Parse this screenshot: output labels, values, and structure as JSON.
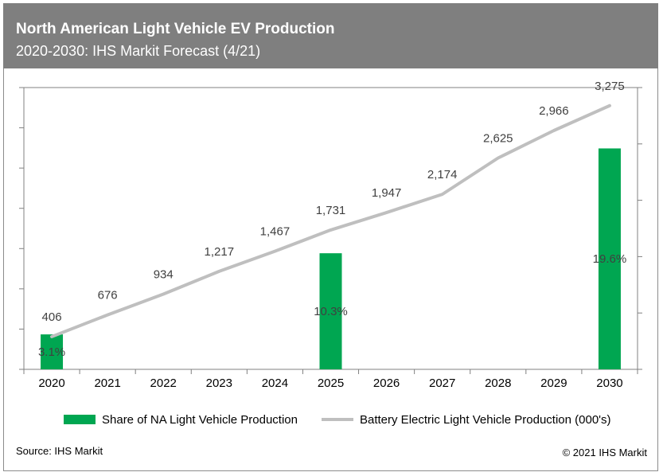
{
  "header": {
    "title": "North American Light Vehicle EV Production",
    "subtitle": "2020-2030: IHS Markit Forecast (4/21)"
  },
  "footer": {
    "source": "Source: IHS Markit",
    "copyright": "© 2021 IHS Markit"
  },
  "colors": {
    "header_bg": "#7f7f7f",
    "bar": "#00a651",
    "line": "#bfbfbf"
  },
  "chart_data": {
    "type": "bar",
    "categories": [
      "2020",
      "2021",
      "2022",
      "2023",
      "2024",
      "2025",
      "2026",
      "2027",
      "2028",
      "2029",
      "2030"
    ],
    "series": [
      {
        "name": "Share of NA Light Vehicle Production",
        "type": "bar",
        "axis": "right",
        "values": [
          3.1,
          null,
          null,
          null,
          null,
          10.3,
          null,
          null,
          null,
          null,
          19.6
        ],
        "labels": [
          "3.1%",
          "",
          "",
          "",
          "",
          "10.3%",
          "",
          "",
          "",
          "",
          "19.6%"
        ]
      },
      {
        "name": "Battery Electric Light Vehicle Production (000's)",
        "type": "line",
        "axis": "left",
        "values": [
          406,
          676,
          934,
          1217,
          1467,
          1731,
          1947,
          2174,
          2625,
          2966,
          3275
        ],
        "labels": [
          "406",
          "676",
          "934",
          "1,217",
          "1,467",
          "1,731",
          "1,947",
          "2,174",
          "2,625",
          "2,966",
          "3,275"
        ]
      }
    ],
    "left_ylim": [
      0,
      3500
    ],
    "right_ylim": [
      0,
      25
    ],
    "grid": false,
    "legend": "bottom"
  }
}
